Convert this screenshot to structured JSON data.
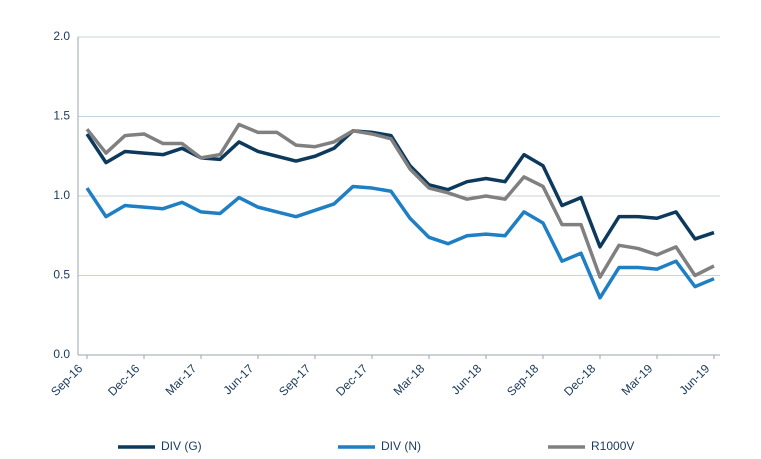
{
  "chart_data": {
    "type": "line",
    "categories": [
      "Sep-16",
      null,
      null,
      "Dec-16",
      null,
      null,
      "Mar-17",
      null,
      null,
      "Jun-17",
      null,
      null,
      "Sep-17",
      null,
      null,
      "Dec-17",
      null,
      null,
      "Mar-18",
      null,
      null,
      "Jun-18",
      null,
      null,
      "Sep-18",
      null,
      null,
      "Dec-18",
      null,
      null,
      "Mar-19",
      null,
      null,
      "Jun-19"
    ],
    "series": [
      {
        "name": "DIV (G)",
        "color": "#0d3a5c",
        "values": [
          1.39,
          1.21,
          1.28,
          1.27,
          1.26,
          1.3,
          1.24,
          1.23,
          1.34,
          1.28,
          1.25,
          1.22,
          1.25,
          1.3,
          1.41,
          1.4,
          1.38,
          1.19,
          1.07,
          1.04,
          1.09,
          1.11,
          1.09,
          1.26,
          1.19,
          0.94,
          0.99,
          0.68,
          0.87,
          0.87,
          0.86,
          0.9,
          0.73,
          0.77
        ]
      },
      {
        "name": "DIV (N)",
        "color": "#1f7fc4",
        "values": [
          1.05,
          0.87,
          0.94,
          0.93,
          0.92,
          0.96,
          0.9,
          0.89,
          0.99,
          0.93,
          0.9,
          0.87,
          0.91,
          0.95,
          1.06,
          1.05,
          1.03,
          0.86,
          0.74,
          0.7,
          0.75,
          0.76,
          0.75,
          0.9,
          0.83,
          0.59,
          0.64,
          0.36,
          0.55,
          0.55,
          0.54,
          0.59,
          0.43,
          0.48
        ]
      },
      {
        "name": "R1000V",
        "color": "#808080",
        "values": [
          1.42,
          1.27,
          1.38,
          1.39,
          1.33,
          1.33,
          1.24,
          1.26,
          1.45,
          1.4,
          1.4,
          1.32,
          1.31,
          1.34,
          1.41,
          1.39,
          1.36,
          1.17,
          1.05,
          1.02,
          0.98,
          1.0,
          0.98,
          1.12,
          1.06,
          0.82,
          0.82,
          0.49,
          0.69,
          0.67,
          0.63,
          0.68,
          0.5,
          0.56
        ]
      }
    ],
    "ylim": [
      0,
      2
    ],
    "yticks": [
      {
        "value": 0,
        "label": "0.0"
      },
      0.5,
      {
        "value": 1,
        "label": "1.0"
      },
      1.5,
      {
        "value": 2,
        "label": "2.0"
      }
    ],
    "grid": true,
    "legend": "bottom"
  }
}
